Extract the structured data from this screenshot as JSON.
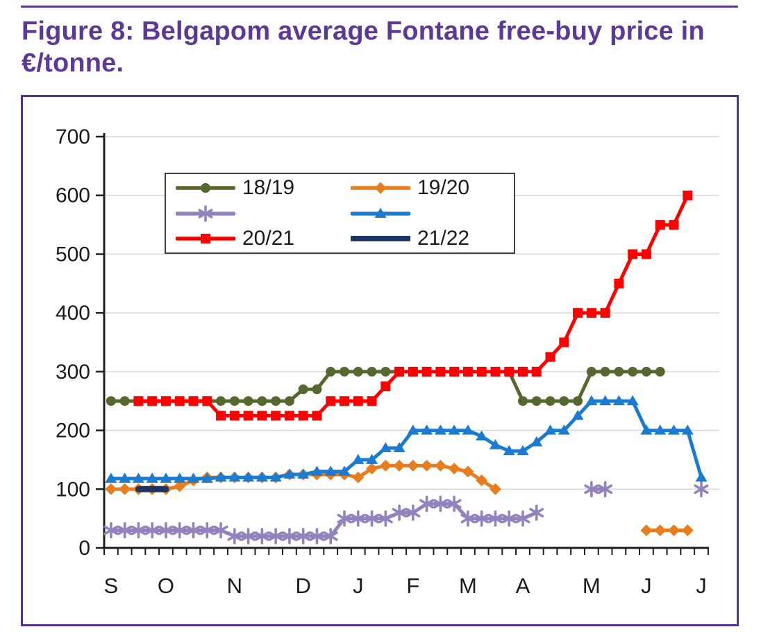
{
  "page": {
    "title": "Figure 8: Belgapom average Fontane free-buy price in €/tonne.",
    "accent_color": "#5C3996",
    "frame_border_color": "#553093"
  },
  "chart_data": {
    "type": "line",
    "title": "Belgapom average Fontane free-buy price in €/tonne",
    "x_unit": "week",
    "n_points": 44,
    "xlabel": "",
    "ylabel": "€/tonne",
    "ylim": [
      0,
      700
    ],
    "yticks": [
      0,
      100,
      200,
      300,
      400,
      500,
      600,
      700
    ],
    "grid": true,
    "gridline_color": "#D9D9D9",
    "axis_color": "#1f1f1f",
    "text_color": "#1a1a1a",
    "legend_position": "upper-left-inside",
    "month_labels": [
      "S",
      "O",
      "N",
      "D",
      "J",
      "F",
      "M",
      "A",
      "M",
      "J",
      "J"
    ],
    "month_week_index": [
      0,
      4,
      9,
      14,
      18,
      22,
      26,
      30,
      35,
      39,
      43
    ],
    "series": [
      {
        "name": "18/19",
        "color": "#56682D",
        "marker": "circle",
        "width": 5,
        "values": [
          250,
          250,
          250,
          250,
          250,
          250,
          250,
          250,
          250,
          250,
          250,
          250,
          250,
          250,
          270,
          270,
          300,
          300,
          300,
          300,
          300,
          300,
          300,
          300,
          300,
          300,
          300,
          300,
          300,
          300,
          250,
          250,
          250,
          250,
          250,
          300,
          300,
          300,
          300,
          300,
          300,
          null,
          null,
          null
        ]
      },
      {
        "name": "19/20",
        "color": "#E87D1E",
        "marker": "diamond",
        "width": 5,
        "values": [
          100,
          100,
          100,
          100,
          100,
          105,
          115,
          120,
          120,
          120,
          120,
          120,
          120,
          125,
          125,
          125,
          125,
          125,
          120,
          135,
          140,
          140,
          140,
          140,
          140,
          135,
          130,
          115,
          100,
          null,
          null,
          null,
          null,
          null,
          null,
          null,
          null,
          null,
          null,
          30,
          30,
          30,
          30,
          null
        ]
      },
      {
        "name": "",
        "color": "#9382BD",
        "marker": "asterisk",
        "width": 5,
        "values": [
          30,
          30,
          30,
          30,
          30,
          30,
          30,
          30,
          30,
          20,
          20,
          20,
          20,
          20,
          20,
          20,
          20,
          50,
          50,
          50,
          50,
          60,
          60,
          75,
          75,
          75,
          50,
          50,
          50,
          50,
          50,
          60,
          null,
          null,
          null,
          100,
          100,
          null,
          null,
          null,
          null,
          null,
          null,
          100
        ]
      },
      {
        "name": "",
        "color": "#1B7BD1",
        "marker": "triangle",
        "width": 5,
        "values": [
          118,
          118,
          118,
          118,
          118,
          118,
          118,
          118,
          120,
          120,
          120,
          120,
          120,
          125,
          125,
          130,
          130,
          130,
          150,
          150,
          170,
          170,
          200,
          200,
          200,
          200,
          200,
          190,
          175,
          165,
          165,
          180,
          200,
          200,
          225,
          250,
          250,
          250,
          250,
          200,
          200,
          200,
          200,
          120
        ]
      },
      {
        "name": "20/21",
        "color": "#FF0000",
        "marker": "square",
        "width": 5,
        "values": [
          null,
          null,
          250,
          250,
          250,
          250,
          250,
          250,
          225,
          225,
          225,
          225,
          225,
          225,
          225,
          225,
          250,
          250,
          250,
          250,
          275,
          300,
          300,
          300,
          300,
          300,
          300,
          300,
          300,
          300,
          300,
          300,
          325,
          350,
          400,
          400,
          400,
          450,
          500,
          500,
          550,
          550,
          600,
          null
        ]
      },
      {
        "name": "21/22",
        "color": "#1C3563",
        "marker": "none",
        "width": 9,
        "values": [
          null,
          null,
          100,
          100,
          100,
          null,
          null,
          null,
          null,
          null,
          null,
          null,
          null,
          null,
          null,
          null,
          null,
          null,
          null,
          null,
          null,
          null,
          null,
          null,
          null,
          null,
          null,
          null,
          null,
          null,
          null,
          null,
          null,
          null,
          null,
          null,
          null,
          null,
          null,
          null,
          null,
          null,
          null,
          null
        ]
      }
    ]
  },
  "legend": {
    "entries": [
      {
        "label": "18/19"
      },
      {
        "label": "19/20"
      },
      {
        "label": ""
      },
      {
        "label": ""
      },
      {
        "label": "20/21"
      },
      {
        "label": "21/22"
      }
    ]
  }
}
